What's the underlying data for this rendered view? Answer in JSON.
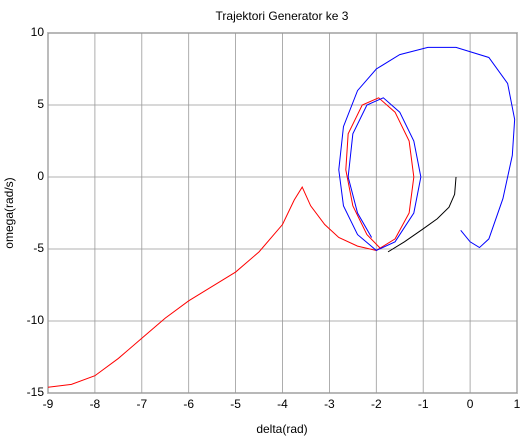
{
  "chart_data": {
    "type": "line",
    "title": "Trajektori Generator ke 3",
    "x_label": "delta(rad)",
    "y_label": "omega(rad/s)",
    "xlim": [
      -9,
      1
    ],
    "ylim": [
      -15,
      10
    ],
    "xticks": [
      -9,
      -8,
      -7,
      -6,
      -5,
      -4,
      -3,
      -2,
      -1,
      0,
      1
    ],
    "yticks": [
      -15,
      -10,
      -5,
      0,
      5,
      10
    ],
    "grid": true,
    "series": [
      {
        "color": "#000000",
        "x": [
          -0.3,
          -0.33,
          -0.45,
          -0.7,
          -1.0,
          -1.4,
          -1.75
        ],
        "values": [
          0,
          -1.2,
          -2.1,
          -2.9,
          -3.6,
          -4.5,
          -5.2
        ]
      },
      {
        "color": "#ff0000",
        "x": [
          -9,
          -8.5,
          -8,
          -7.5,
          -7,
          -6.5,
          -6,
          -5.5,
          -5,
          -4.5,
          -4,
          -3.75,
          -3.58,
          -3.4,
          -3.1,
          -2.8,
          -2.4,
          -2.0,
          -1.6,
          -1.3,
          -1.2,
          -1.3,
          -1.6,
          -1.95,
          -2.3,
          -2.6,
          -2.65,
          -2.5,
          -2.2,
          -1.9
        ],
        "values": [
          -14.6,
          -14.4,
          -13.8,
          -12.6,
          -11.2,
          -9.8,
          -8.6,
          -7.6,
          -6.6,
          -5.2,
          -3.3,
          -1.6,
          -0.7,
          -2.0,
          -3.3,
          -4.2,
          -4.8,
          -5.1,
          -4.3,
          -2.5,
          0,
          2.5,
          4.5,
          5.5,
          5.0,
          3.0,
          0.5,
          -2.0,
          -4.0,
          -5.0
        ]
      },
      {
        "color": "#0000ff",
        "x": [
          -0.2,
          0,
          0.2,
          0.4,
          0.7,
          0.9,
          0.95,
          0.8,
          0.4,
          -0.3,
          -0.9,
          -1.5,
          -2.0,
          -2.4,
          -2.7,
          -2.8,
          -2.7,
          -2.4,
          -2.0,
          -1.6,
          -1.2,
          -1.05,
          -1.2,
          -1.5,
          -1.85,
          -2.2,
          -2.5,
          -2.6,
          -2.4,
          -2.1
        ],
        "values": [
          -3.7,
          -4.5,
          -4.9,
          -4.3,
          -1.5,
          1.5,
          4.0,
          6.5,
          8.3,
          9.0,
          9.0,
          8.5,
          7.5,
          6.0,
          3.5,
          0.5,
          -2.0,
          -4.0,
          -5.1,
          -4.5,
          -2.5,
          0,
          2.5,
          4.5,
          5.5,
          5.0,
          3.0,
          0,
          -2.5,
          -4.2
        ]
      }
    ]
  }
}
